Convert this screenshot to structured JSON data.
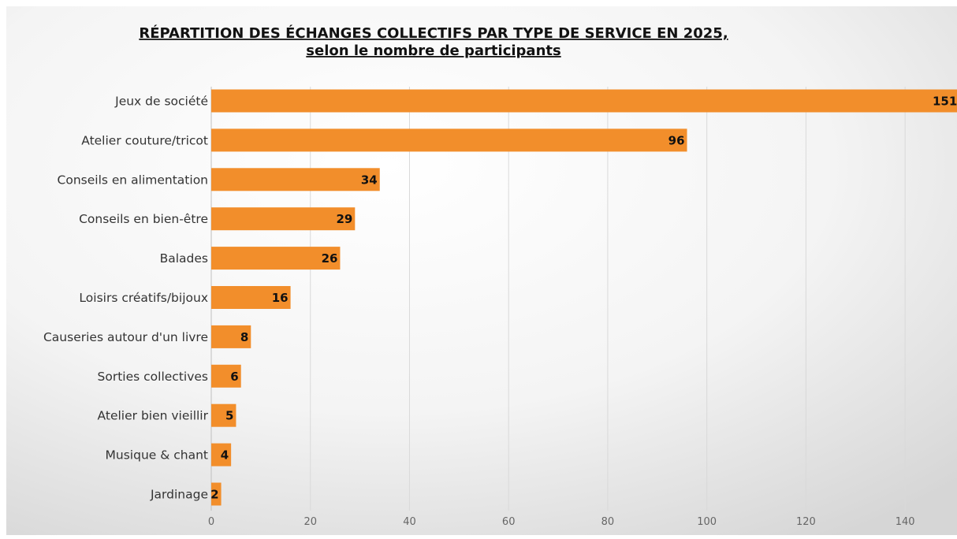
{
  "chart_data": {
    "type": "bar",
    "orientation": "horizontal",
    "title": "RÉPARTITION DES ÉCHANGES COLLECTIFS PAR TYPE DE SERVICE EN 2025,",
    "subtitle": "selon le nombre de participants",
    "categories": [
      "Jeux de société",
      "Atelier couture/tricot",
      "Conseils en alimentation",
      "Conseils en bien-être",
      "Balades",
      "Loisirs créatifs/bijoux",
      "Causeries autour d'un livre",
      "Sorties collectives",
      "Atelier bien vieillir",
      "Musique & chant",
      "Jardinage"
    ],
    "values": [
      151,
      96,
      34,
      29,
      26,
      16,
      8,
      6,
      5,
      4,
      2
    ],
    "xlim": [
      0,
      150
    ],
    "xticks": [
      0,
      20,
      40,
      60,
      80,
      100,
      120,
      140
    ],
    "grid": true,
    "bar_color": "#f28e2b",
    "background": "gradient-white-grey"
  }
}
